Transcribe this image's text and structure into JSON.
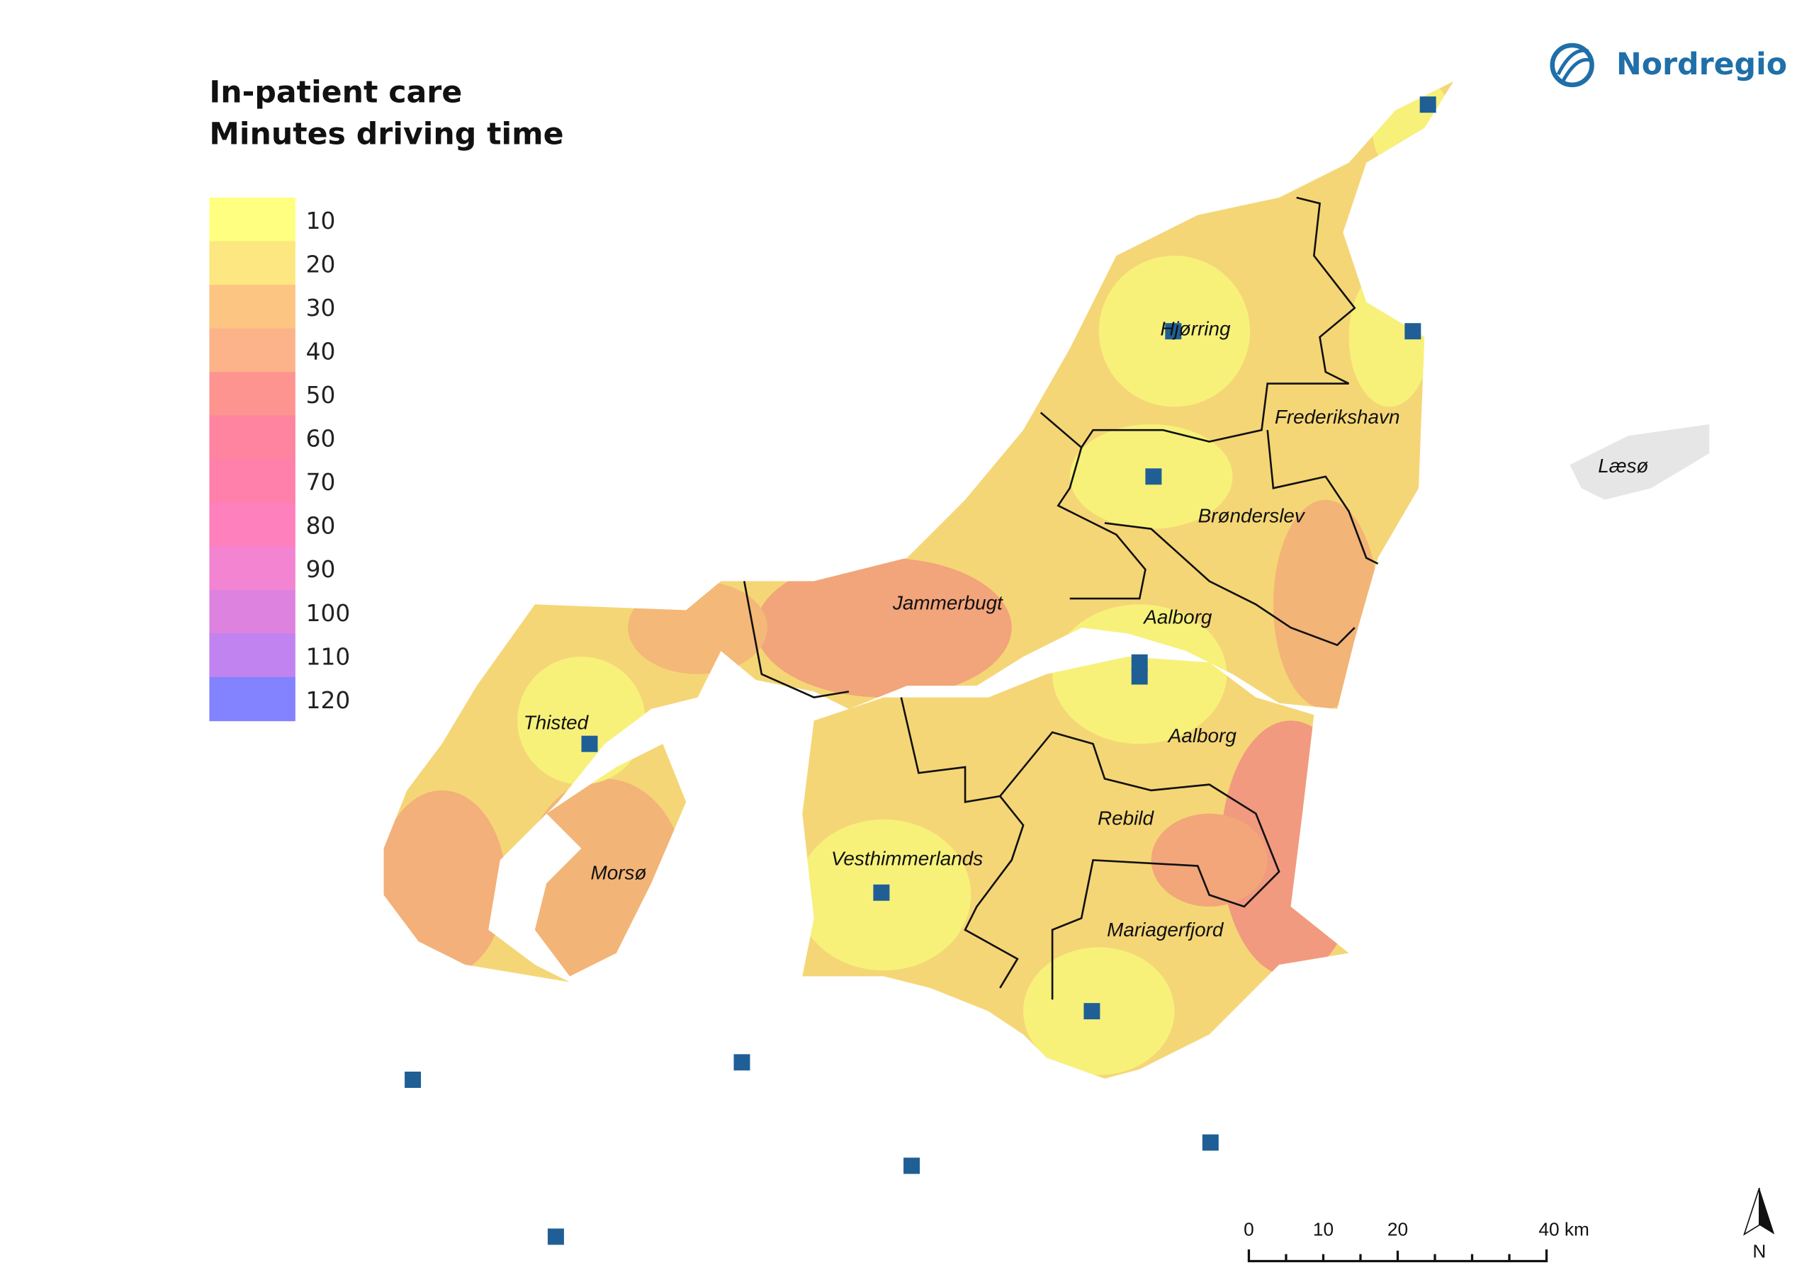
{
  "title": [
    "In-patient care",
    "Minutes driving time"
  ],
  "legend": {
    "labels": [
      10,
      20,
      30,
      40,
      50,
      60,
      70,
      80,
      90,
      100,
      110,
      120
    ]
  },
  "place_labels": [
    "Hjørring",
    "Frederikshavn",
    "Læsø",
    "Brønderslev",
    "Jammerbugt",
    "Aalborg",
    "Aalborg",
    "Thisted",
    "Rebild",
    "Vesthimmerlands",
    "Morsø",
    "Mariagerfjord"
  ],
  "scale_bar": {
    "labels": [
      "0",
      "10",
      "20",
      "40 km"
    ]
  },
  "north_label": "N",
  "brand": "Nordregio"
}
